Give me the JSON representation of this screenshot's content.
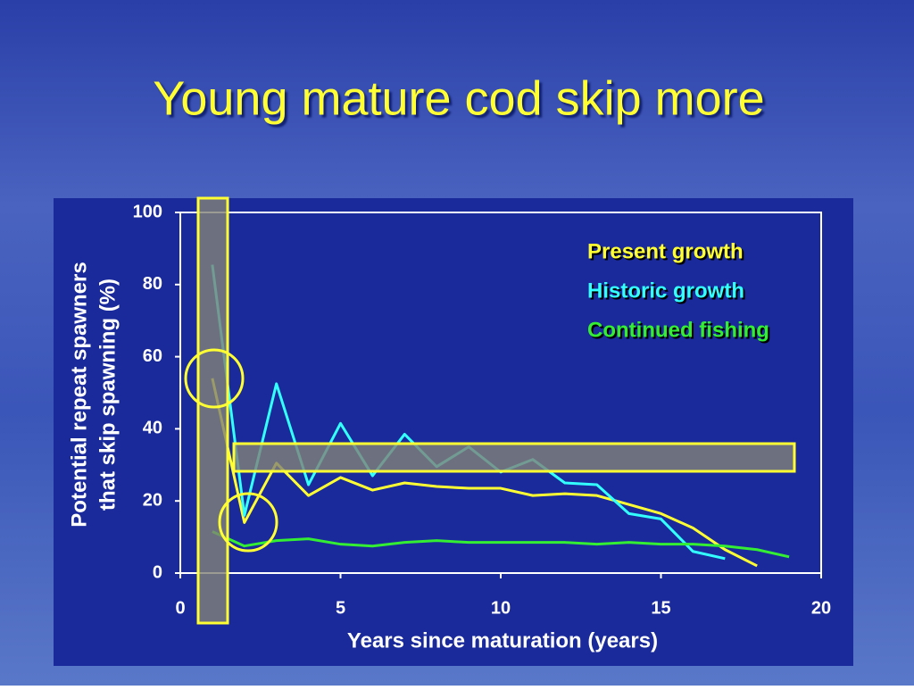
{
  "chart_data": {
    "type": "line",
    "title": "Young mature cod skip more",
    "xlabel": "Years since maturation (years)",
    "ylabel": [
      "Potential repeat spawners",
      "that skip spawning (%)"
    ],
    "x": [
      1,
      2,
      3,
      4,
      5,
      6,
      7,
      8,
      9,
      10,
      11,
      12,
      13,
      14,
      15,
      16,
      17,
      18,
      19
    ],
    "series": [
      {
        "name": "Present growth",
        "color": "#ffff33",
        "values": [
          54,
          14,
          30.5,
          21.5,
          26.5,
          23,
          25,
          24,
          23.5,
          23.5,
          21.5,
          22,
          21.5,
          19,
          16.5,
          12.5,
          6.5,
          2,
          null
        ]
      },
      {
        "name": "Historic growth",
        "color": "#33ffff",
        "values": [
          85.5,
          16,
          52.5,
          24.5,
          41.5,
          27,
          38.5,
          29.5,
          35,
          28,
          31.5,
          25,
          24.5,
          16.5,
          15,
          6,
          4,
          null,
          null
        ]
      },
      {
        "name": "Continued fishing",
        "color": "#33ee33",
        "values": [
          11.5,
          7.5,
          9,
          9.5,
          8,
          7.5,
          8.5,
          9,
          8.5,
          8.5,
          8.5,
          8.5,
          8,
          8.5,
          8,
          8,
          7.5,
          6.5,
          4.5
        ]
      }
    ],
    "xlim": [
      0,
      20
    ],
    "xticks": [
      0,
      5,
      10,
      15,
      20
    ],
    "ylim": [
      0,
      100
    ],
    "yticks": [
      0,
      20,
      40,
      60,
      80,
      100
    ]
  }
}
